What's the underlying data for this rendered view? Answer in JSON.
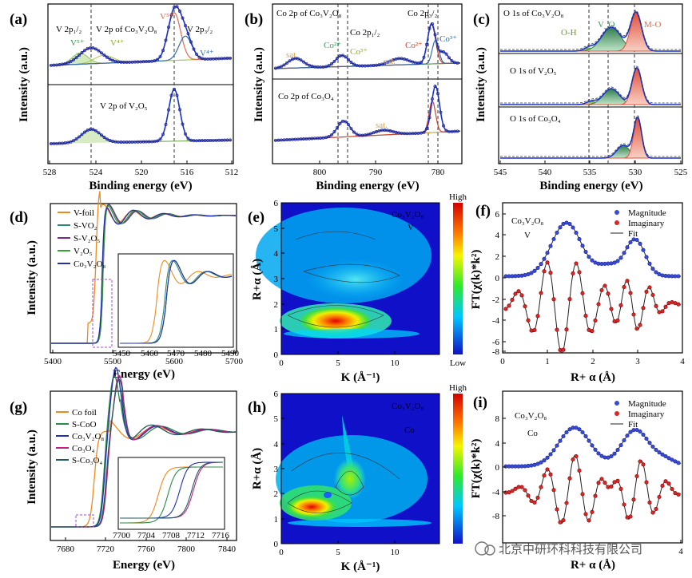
{
  "colors": {
    "data_points": "#1f1f80",
    "fit": "#1a33cc",
    "v5": "#c0392b",
    "v4": "#2f6fb0",
    "co2": "#d0442f",
    "co3": "#2f6fb0",
    "sat": "#e8a030",
    "oh": "#6a9a2a",
    "vo": "#3f9a5a",
    "mo": "#e06a50",
    "magnitude": "#3b4bd6",
    "imaginary": "#d42a2a",
    "wt_high": "#ff0000",
    "wt_low": "#0000cc"
  },
  "panels": {
    "a": {
      "label": "(a)",
      "xlabel": "Binding energy (eV)",
      "ylabel": "Intensity (a.u.)",
      "xticks": [
        "528",
        "524",
        "520",
        "516",
        "512"
      ],
      "top_title": "V 2p of Co₃V₂O₈",
      "bottom_title": "V 2p of V₂O₅",
      "v2p12": "V 2p₁/₂",
      "v2p32": "V 2p₃/₂",
      "v5": "V⁵⁺",
      "v4": "V⁴⁺"
    },
    "b": {
      "label": "(b)",
      "xlabel": "Binding energy (eV)",
      "ylabel": "Intensity (a.u.)",
      "xticks": [
        "800",
        "790",
        "780"
      ],
      "top_title": "Co 2p of Co₃V₂O₈",
      "bottom_title": "Co 2p of Co₃O₄",
      "co2p12": "Co 2p₁/₂",
      "co2p32": "Co 2p₃/₂",
      "sat": "sat.",
      "co2": "Co²⁺",
      "co3": "Co³⁺"
    },
    "c": {
      "label": "(c)",
      "xlabel": "Binding energy (eV)",
      "ylabel": "Intensity (a.u.)",
      "xticks": [
        "545",
        "540",
        "535",
        "530",
        "525"
      ],
      "title1": "O 1s of Co₃V₂O₈",
      "title2": "O 1s of V₂O₅",
      "title3": "O 1s of Co₃O₄",
      "oh": "O-H",
      "vo": "V_O",
      "mo": "M-O"
    },
    "d": {
      "label": "(d)",
      "xlabel": "Energy (eV)",
      "ylabel": "Intensity (a.u.)",
      "xticks": [
        "5400",
        "5500",
        "5600",
        "5700"
      ],
      "inset_xticks": [
        "5450",
        "5460",
        "5470",
        "5480",
        "5490"
      ],
      "legend": [
        {
          "name": "V-foil",
          "color": "#f08a1e"
        },
        {
          "name": "S-VO₂",
          "color": "#2a8a7a"
        },
        {
          "name": "S-V₂O₅",
          "color": "#7a2a8a"
        },
        {
          "name": "V₂O₅",
          "color": "#3aa038"
        },
        {
          "name": "Co₃V₂O₈",
          "color": "#2030b0"
        }
      ]
    },
    "e": {
      "label": "(e)",
      "xlabel": "K (Å⁻¹)",
      "ylabel": "R+α (Å)",
      "xticks": [
        "0",
        "5",
        "10"
      ],
      "yticks": [
        "0",
        "1",
        "2",
        "3",
        "4",
        "5",
        "6"
      ],
      "annot1": "Co₃V₂O₈",
      "annot2": "V",
      "scale_high": "High",
      "scale_low": "Low"
    },
    "f": {
      "label": "(f)",
      "xlabel": "R+ α (Å)",
      "ylabel": "FT(χ(k)*k²)",
      "xticks": [
        "0",
        "1",
        "2",
        "3",
        "4"
      ],
      "yticks": [
        "6",
        "4",
        "2",
        "0",
        "-2",
        "-4",
        "-6",
        "-8"
      ],
      "annot1": "Co₃V₂O₈",
      "annot2": "V",
      "legend": [
        "Magnitude",
        "Imaginary",
        "Fit"
      ]
    },
    "g": {
      "label": "(g)",
      "xlabel": "Energy (eV)",
      "ylabel": "Intensity (a.u.)",
      "xticks": [
        "7680",
        "7720",
        "7760",
        "7800",
        "7840"
      ],
      "inset_xticks": [
        "7700",
        "7704",
        "7708",
        "7712",
        "7716"
      ],
      "legend": [
        {
          "name": "Co foil",
          "color": "#f08a1e"
        },
        {
          "name": "S-CoO",
          "color": "#2a8a4a"
        },
        {
          "name": "Co₃V₂O₈",
          "color": "#2030b0"
        },
        {
          "name": "Co₃O₄",
          "color": "#c0207a"
        },
        {
          "name": "S-Co₃O₄",
          "color": "#205a60"
        }
      ]
    },
    "h": {
      "label": "(h)",
      "xlabel": "K (Å⁻¹)",
      "ylabel": "R+α (Å)",
      "xticks": [
        "0",
        "5",
        "10"
      ],
      "yticks": [
        "0",
        "1",
        "2",
        "3",
        "4",
        "5",
        "6"
      ],
      "annot1": "Co₃V₂O₈",
      "annot2": "Co",
      "scale_high": "High"
    },
    "i": {
      "label": "(i)",
      "xlabel": "R+ α (Å)",
      "ylabel": "FT(χ(k)*k²)",
      "xticks": [
        "4"
      ],
      "yticks": [
        "8",
        "4",
        "0",
        "-4",
        "-8"
      ],
      "annot1": "Co₃V₂O₈",
      "annot2": "Co",
      "legend": [
        "Magnitude",
        "Imaginary",
        "Fit"
      ]
    }
  },
  "watermark": "北京中研环科科技有限公司",
  "chart_data": [
    {
      "panel": "a",
      "type": "line",
      "x_reversed": true,
      "xlim": [
        528,
        512
      ],
      "series": [
        {
          "name": "V 2p of Co₃V₂O₈",
          "peaks_eV": [
            524.5,
            517.2,
            516.4
          ],
          "peak_heights": [
            0.3,
            1.0,
            0.55
          ]
        },
        {
          "name": "V 2p of V₂O₅",
          "peaks_eV": [
            524.8,
            517.3
          ],
          "peak_heights": [
            0.35,
            1.0
          ]
        }
      ]
    },
    {
      "panel": "b",
      "type": "line",
      "x_reversed": true,
      "xlim": [
        806,
        777
      ],
      "series": [
        {
          "name": "Co 2p of Co₃V₂O₈",
          "peaks_eV": [
            796.2,
            780.6
          ],
          "peak_heights": [
            0.35,
            1.0
          ]
        },
        {
          "name": "Co 2p of Co₃O₄",
          "peaks_eV": [
            795.3,
            780.0
          ],
          "peak_heights": [
            0.35,
            1.0
          ]
        }
      ]
    },
    {
      "panel": "c",
      "type": "line",
      "x_reversed": true,
      "xlim": [
        545,
        525
      ],
      "series": [
        {
          "name": "O 1s of Co₃V₂O₈",
          "peaks_eV": [
            535.0,
            533.0,
            530.3
          ],
          "peak_heights": [
            0.15,
            0.6,
            1.0
          ]
        },
        {
          "name": "O 1s of V₂O₅",
          "peaks_eV": [
            535.2,
            533.0,
            530.2
          ],
          "peak_heights": [
            0.15,
            0.45,
            1.0
          ]
        },
        {
          "name": "O 1s of Co₃O₄",
          "peaks_eV": [
            531.7,
            530.0
          ],
          "peak_heights": [
            0.35,
            1.0
          ]
        }
      ]
    },
    {
      "panel": "d",
      "type": "line",
      "xlim": [
        5400,
        5700
      ],
      "series": [
        {
          "name": "V-foil",
          "edge_eV": 5465
        },
        {
          "name": "S-VO₂",
          "edge_eV": 5480
        },
        {
          "name": "S-V₂O₅",
          "edge_eV": 5481
        },
        {
          "name": "V₂O₅",
          "edge_eV": 5481
        },
        {
          "name": "Co₃V₂O₈",
          "edge_eV": 5480
        }
      ]
    },
    {
      "panel": "e",
      "type": "heatmap",
      "xlim": [
        0,
        14
      ],
      "ylim": [
        0,
        6
      ],
      "maximum": {
        "k": 4.5,
        "R": 1.3
      }
    },
    {
      "panel": "f",
      "type": "line",
      "xlim": [
        0,
        4
      ],
      "ylim": [
        -8,
        6
      ],
      "series": [
        {
          "name": "Magnitude",
          "peaks_R": [
            1.4,
            2.95
          ],
          "offset": 0
        },
        {
          "name": "Imaginary",
          "offset": -2.5
        }
      ]
    },
    {
      "panel": "g",
      "type": "line",
      "xlim": [
        7660,
        7845
      ],
      "series": [
        {
          "name": "Co foil",
          "edge_eV": 7709
        },
        {
          "name": "S-CoO",
          "edge_eV": 7717
        },
        {
          "name": "Co₃V₂O₈",
          "edge_eV": 7718
        },
        {
          "name": "Co₃O₄",
          "edge_eV": 7720
        },
        {
          "name": "S-Co₃O₄",
          "edge_eV": 7719
        }
      ]
    },
    {
      "panel": "h",
      "type": "heatmap",
      "xlim": [
        0,
        14
      ],
      "ylim": [
        0,
        6
      ],
      "maximum": {
        "k": 4.0,
        "R": 1.4
      },
      "secondary": {
        "k": 6.5,
        "R": 2.6
      }
    },
    {
      "panel": "i",
      "type": "line",
      "xlim": [
        0,
        4
      ],
      "ylim": [
        -10,
        8
      ],
      "series": [
        {
          "name": "Magnitude",
          "peaks_R": [
            1.6,
            2.95
          ],
          "offset": 0
        },
        {
          "name": "Imaginary",
          "offset": -4
        }
      ]
    }
  ]
}
